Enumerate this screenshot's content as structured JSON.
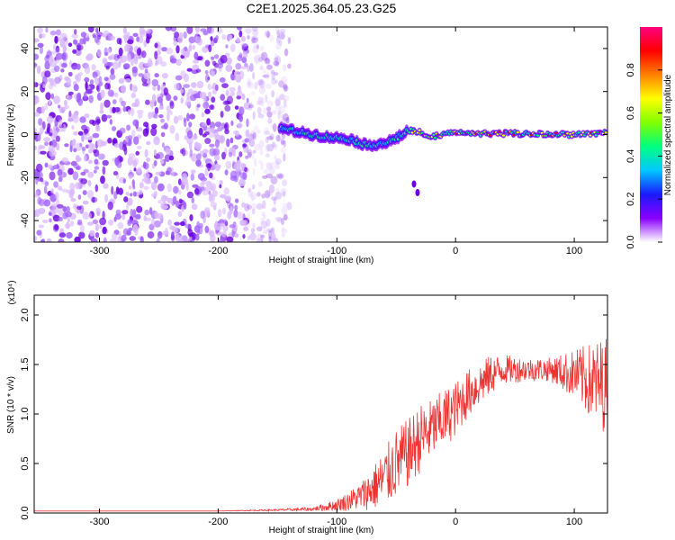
{
  "chart_data": [
    {
      "type": "heatmap",
      "title": "C2E1.2025.364.05.23.G25",
      "xlabel": "Height of straight line (km)",
      "ylabel": "Frequency (Hz)",
      "xlim": [
        -355,
        128
      ],
      "ylim": [
        -50,
        50
      ],
      "x_ticks": [
        -300,
        -200,
        -100,
        0,
        100
      ],
      "x_tick_labels": [
        "-300",
        "-200",
        "-100",
        "0",
        "100"
      ],
      "y_ticks": [
        -40,
        -20,
        0,
        20,
        40
      ],
      "y_tick_labels": [
        "-40",
        "-20",
        "0",
        "20",
        "40"
      ],
      "colorbar": {
        "label": "Normalized spectral amplitude",
        "range": [
          0.0,
          1.0
        ],
        "ticks": [
          0.0,
          0.2,
          0.4,
          0.6,
          0.8
        ],
        "tick_labels": [
          "0.0",
          "0.2",
          "0.4",
          "0.6",
          "0.8"
        ],
        "colors": [
          "#ffffff",
          "#8a00ff",
          "#1a1aff",
          "#00c8ff",
          "#00ff80",
          "#80ff00",
          "#ffff00",
          "#ff8000",
          "#ff0000",
          "#ff0080"
        ]
      },
      "features": [
        {
          "name": "noise-region",
          "x_range": [
            -355,
            -140
          ],
          "freq_range": [
            -50,
            50
          ],
          "amplitude": 0.2
        },
        {
          "name": "signal-track",
          "x": [
            -148,
            -130,
            -110,
            -90,
            -75,
            -60,
            -50,
            -40,
            -30,
            -20,
            0,
            20,
            50,
            80,
            100,
            128
          ],
          "freq": [
            3,
            1,
            -1,
            -2,
            -5,
            -4,
            -2,
            2,
            1,
            -1,
            1,
            0.5,
            0.5,
            0,
            0,
            1
          ],
          "amplitude": 0.6
        },
        {
          "name": "outlier-blob",
          "x": [
            -35,
            -32
          ],
          "freq": [
            -23,
            -27
          ],
          "amplitude": 0.25
        }
      ]
    },
    {
      "type": "line",
      "title": "",
      "xlabel": "Height of straight line (km)",
      "ylabel": "SNR (10 * v/v)",
      "y_scale_label": "(x10⁴)",
      "xlim": [
        -355,
        128
      ],
      "ylim": [
        0,
        2.2
      ],
      "x_ticks": [
        -300,
        -200,
        -100,
        0,
        100
      ],
      "x_tick_labels": [
        "-300",
        "-200",
        "-100",
        "0",
        "100"
      ],
      "y_ticks": [
        0,
        0.5,
        1.0,
        1.5,
        2.0
      ],
      "y_tick_labels": [
        "0.0",
        "0.5",
        "1.0",
        "1.5",
        "2.0"
      ],
      "line_color": "#ee3333",
      "series": [
        {
          "name": "SNR",
          "x": [
            -355,
            -300,
            -200,
            -150,
            -120,
            -110,
            -100,
            -90,
            -80,
            -70,
            -60,
            -50,
            -40,
            -30,
            -20,
            -10,
            0,
            10,
            20,
            30,
            40,
            60,
            80,
            100,
            110,
            120,
            128
          ],
          "y": [
            0.02,
            0.02,
            0.02,
            0.03,
            0.04,
            0.06,
            0.08,
            0.12,
            0.17,
            0.25,
            0.35,
            0.5,
            0.6,
            0.75,
            0.85,
            0.95,
            1.05,
            1.2,
            1.3,
            1.4,
            1.45,
            1.45,
            1.45,
            1.4,
            1.35,
            1.3,
            1.3
          ],
          "noise": [
            0.0,
            0.0,
            0.0,
            0.01,
            0.02,
            0.04,
            0.06,
            0.1,
            0.14,
            0.22,
            0.3,
            0.35,
            0.35,
            0.35,
            0.3,
            0.3,
            0.28,
            0.25,
            0.22,
            0.2,
            0.15,
            0.12,
            0.12,
            0.25,
            0.35,
            0.45,
            0.5
          ]
        }
      ]
    }
  ]
}
